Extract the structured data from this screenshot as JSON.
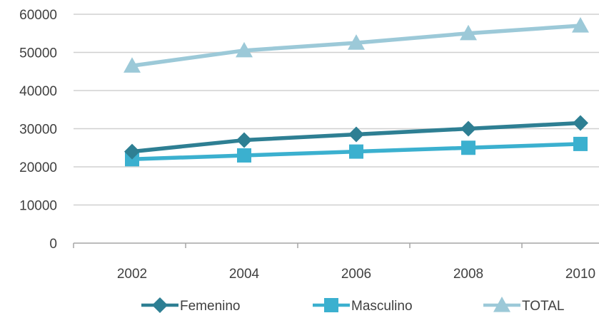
{
  "chart_data": {
    "type": "line",
    "x": [
      2002,
      2004,
      2006,
      2008,
      2010
    ],
    "ylim": [
      0,
      60000
    ],
    "yticks": [
      0,
      10000,
      20000,
      30000,
      40000,
      50000,
      60000
    ],
    "grid": true,
    "legend_position": "bottom",
    "series": [
      {
        "name": "Femenino",
        "values": [
          24000,
          27000,
          28500,
          30000,
          31500
        ],
        "color": "#2E7F93",
        "marker": "diamond"
      },
      {
        "name": "Masculino",
        "values": [
          22000,
          23000,
          24000,
          25000,
          26000
        ],
        "color": "#3BB0CF",
        "marker": "square"
      },
      {
        "name": "TOTAL",
        "values": [
          46500,
          50500,
          52500,
          55000,
          57000
        ],
        "color": "#9CC9D8",
        "marker": "triangle"
      }
    ]
  }
}
